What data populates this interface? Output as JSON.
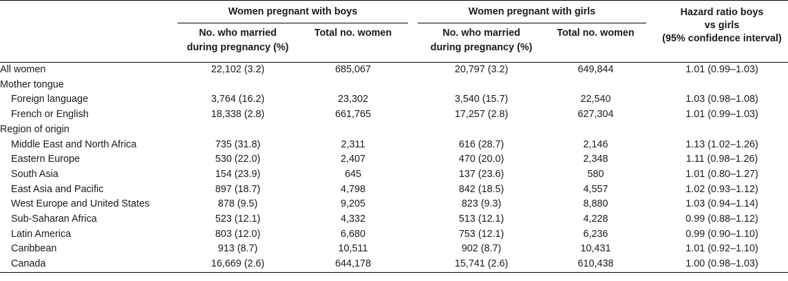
{
  "header": {
    "group_boys": "Women pregnant with boys",
    "group_girls": "Women pregnant with girls",
    "married_line1": "No. who married",
    "married_line2": "during pregnancy (%)",
    "total": "Total no. women",
    "hr_line1": "Hazard ratio boys",
    "hr_line2": "vs girls",
    "hr_line3": "(95% confidence interval)"
  },
  "rows": [
    {
      "label": "All women",
      "indent": false,
      "boys_married": "22,102 (3.2)",
      "boys_total": "685,067",
      "girls_married": "20,797 (3.2)",
      "girls_total": "649,844",
      "hr": "1.01 (0.99–1.03)"
    },
    {
      "label": "Mother tongue",
      "indent": false,
      "boys_married": "",
      "boys_total": "",
      "girls_married": "",
      "girls_total": "",
      "hr": ""
    },
    {
      "label": "Foreign language",
      "indent": true,
      "boys_married": "3,764 (16.2)",
      "boys_total": "23,302",
      "girls_married": "3,540 (15.7)",
      "girls_total": "22,540",
      "hr": "1.03 (0.98–1.08)"
    },
    {
      "label": "French or English",
      "indent": true,
      "boys_married": "18,338 (2.8)",
      "boys_total": "661,765",
      "girls_married": "17,257 (2.8)",
      "girls_total": "627,304",
      "hr": "1.01 (0.99–1.03)"
    },
    {
      "label": "Region of origin",
      "indent": false,
      "boys_married": "",
      "boys_total": "",
      "girls_married": "",
      "girls_total": "",
      "hr": ""
    },
    {
      "label": "Middle East and North Africa",
      "indent": true,
      "boys_married": "735 (31.8)",
      "boys_total": "2,311",
      "girls_married": "616 (28.7)",
      "girls_total": "2,146",
      "hr": "1.13 (1.02–1.26)"
    },
    {
      "label": "Eastern Europe",
      "indent": true,
      "boys_married": "530 (22.0)",
      "boys_total": "2,407",
      "girls_married": "470 (20.0)",
      "girls_total": "2,348",
      "hr": "1.11 (0.98–1.26)"
    },
    {
      "label": "South Asia",
      "indent": true,
      "boys_married": "154 (23.9)",
      "boys_total": "645",
      "girls_married": "137 (23.6)",
      "girls_total": "580",
      "hr": "1.01 (0.80–1.27)"
    },
    {
      "label": "East Asia and Pacific",
      "indent": true,
      "boys_married": "897 (18.7)",
      "boys_total": "4,798",
      "girls_married": "842 (18.5)",
      "girls_total": "4,557",
      "hr": "1.02 (0.93–1.12)"
    },
    {
      "label": "West Europe and United States",
      "indent": true,
      "boys_married": "878 (9.5)",
      "boys_total": "9,205",
      "girls_married": "823 (9.3)",
      "girls_total": "8,880",
      "hr": "1.03 (0.94–1.14)"
    },
    {
      "label": "Sub-Saharan Africa",
      "indent": true,
      "boys_married": "523 (12.1)",
      "boys_total": "4,332",
      "girls_married": "513 (12.1)",
      "girls_total": "4,228",
      "hr": "0.99 (0.88–1.12)"
    },
    {
      "label": "Latin America",
      "indent": true,
      "boys_married": "803 (12.0)",
      "boys_total": "6,680",
      "girls_married": "753 (12.1)",
      "girls_total": "6,236",
      "hr": "0.99 (0.90–1.10)"
    },
    {
      "label": "Caribbean",
      "indent": true,
      "boys_married": "913 (8.7)",
      "boys_total": "10,511",
      "girls_married": "902 (8.7)",
      "girls_total": "10,431",
      "hr": "1.01 (0.92–1.10)"
    },
    {
      "label": "Canada",
      "indent": true,
      "boys_married": "16,669 (2.6)",
      "boys_total": "644,178",
      "girls_married": "15,741 (2.6)",
      "girls_total": "610,438",
      "hr": "1.00 (0.98–1.03)"
    }
  ]
}
